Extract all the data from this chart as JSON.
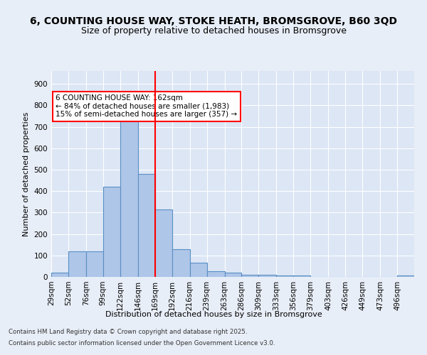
{
  "title": "6, COUNTING HOUSE WAY, STOKE HEATH, BROMSGROVE, B60 3QD",
  "subtitle": "Size of property relative to detached houses in Bromsgrove",
  "xlabel": "Distribution of detached houses by size in Bromsgrove",
  "ylabel": "Number of detached properties",
  "bin_labels": [
    "29sqm",
    "52sqm",
    "76sqm",
    "99sqm",
    "122sqm",
    "146sqm",
    "169sqm",
    "192sqm",
    "216sqm",
    "239sqm",
    "263sqm",
    "286sqm",
    "309sqm",
    "333sqm",
    "356sqm",
    "379sqm",
    "403sqm",
    "426sqm",
    "449sqm",
    "473sqm",
    "496sqm"
  ],
  "bin_edges": [
    29,
    52,
    76,
    99,
    122,
    146,
    169,
    192,
    216,
    239,
    263,
    286,
    309,
    333,
    356,
    379,
    403,
    426,
    449,
    473,
    496,
    519
  ],
  "bar_heights": [
    20,
    120,
    120,
    420,
    730,
    480,
    315,
    130,
    65,
    25,
    20,
    10,
    10,
    5,
    8,
    0,
    0,
    0,
    0,
    0,
    5
  ],
  "bar_color": "#aec6e8",
  "bar_edge_color": "#5a8fc4",
  "vline_x": 169,
  "vline_color": "red",
  "annotation_text": "6 COUNTING HOUSE WAY: 162sqm\n← 84% of detached houses are smaller (1,983)\n15% of semi-detached houses are larger (357) →",
  "annotation_box_color": "white",
  "annotation_box_edge": "red",
  "bg_color": "#e8eef7",
  "plot_bg_color": "#dce6f5",
  "grid_color": "white",
  "ylim": [
    0,
    960
  ],
  "yticks": [
    0,
    100,
    200,
    300,
    400,
    500,
    600,
    700,
    800,
    900
  ],
  "footer_line1": "Contains HM Land Registry data © Crown copyright and database right 2025.",
  "footer_line2": "Contains public sector information licensed under the Open Government Licence v3.0.",
  "title_fontsize": 10,
  "subtitle_fontsize": 9,
  "label_fontsize": 8,
  "tick_fontsize": 7.5,
  "annotation_fontsize": 7.5
}
